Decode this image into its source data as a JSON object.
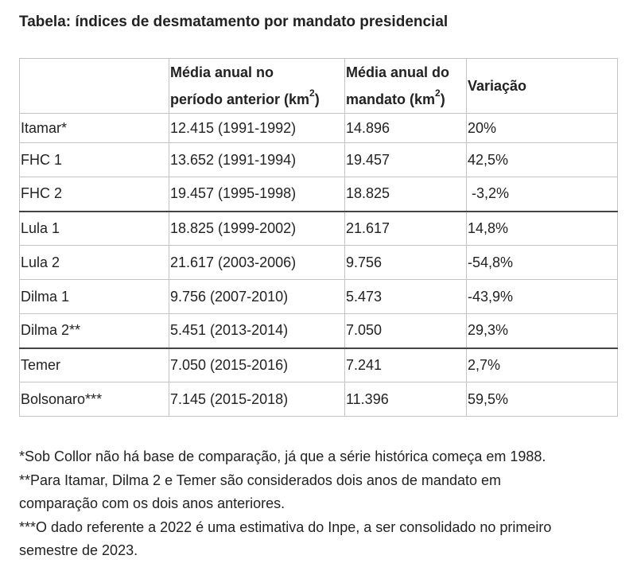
{
  "title": "Tabela: índices de desmatamento por mandato presidencial",
  "table": {
    "headers": {
      "blank": "",
      "col1_line1": "Média anual no",
      "col1_line2": "período anterior (km",
      "col1_sup": "2",
      "col1_close": ")",
      "col2_line1": "Média anual do",
      "col2_line2": "mandato (km",
      "col2_sup": "2",
      "col2_close": ")",
      "col3": "Variação"
    },
    "rows": [
      {
        "mandate": "Itamar*",
        "previous": "12.415 (1991-1992)",
        "mandate_avg": "14.896",
        "variation": "20%"
      },
      {
        "mandate": "FHC 1",
        "previous": "13.652 (1991-1994)",
        "mandate_avg": "19.457",
        "variation": "42,5%"
      },
      {
        "mandate": "FHC 2",
        "previous": "19.457 (1995-1998)",
        "mandate_avg": "18.825",
        "variation": " -3,2%"
      },
      {
        "mandate": "Lula 1",
        "previous": "18.825 (1999-2002)",
        "mandate_avg": "21.617",
        "variation": "14,8%"
      },
      {
        "mandate": "Lula 2",
        "previous": "21.617 (2003-2006)",
        "mandate_avg": "9.756",
        "variation": "-54,8%"
      },
      {
        "mandate": "Dilma 1",
        "previous": "9.756 (2007-2010)",
        "mandate_avg": "5.473",
        "variation": "-43,9%"
      },
      {
        "mandate": "Dilma 2**",
        "previous": "5.451 (2013-2014)",
        "mandate_avg": "7.050",
        "variation": "29,3%"
      },
      {
        "mandate": "Temer",
        "previous": "7.050 (2015-2016)",
        "mandate_avg": "7.241",
        "variation": "2,7%"
      },
      {
        "mandate": "Bolsonaro***",
        "previous": "7.145 (2015-2018)",
        "mandate_avg": "11.396",
        "variation": "59,5%"
      }
    ]
  },
  "notes": {
    "note1": "*Sob Collor não há base de comparação, já que a série histórica começa em 1988.",
    "note2_line1": "**Para Itamar, Dilma 2 e Temer são considerados dois anos de mandato em",
    "note2_line2": "comparação com os dois anos anteriores.",
    "note3_line1": "***O dado referente a 2022 é uma estimativa do Inpe, a ser consolidado no primeiro",
    "note3_line2": "semestre de 2023."
  }
}
